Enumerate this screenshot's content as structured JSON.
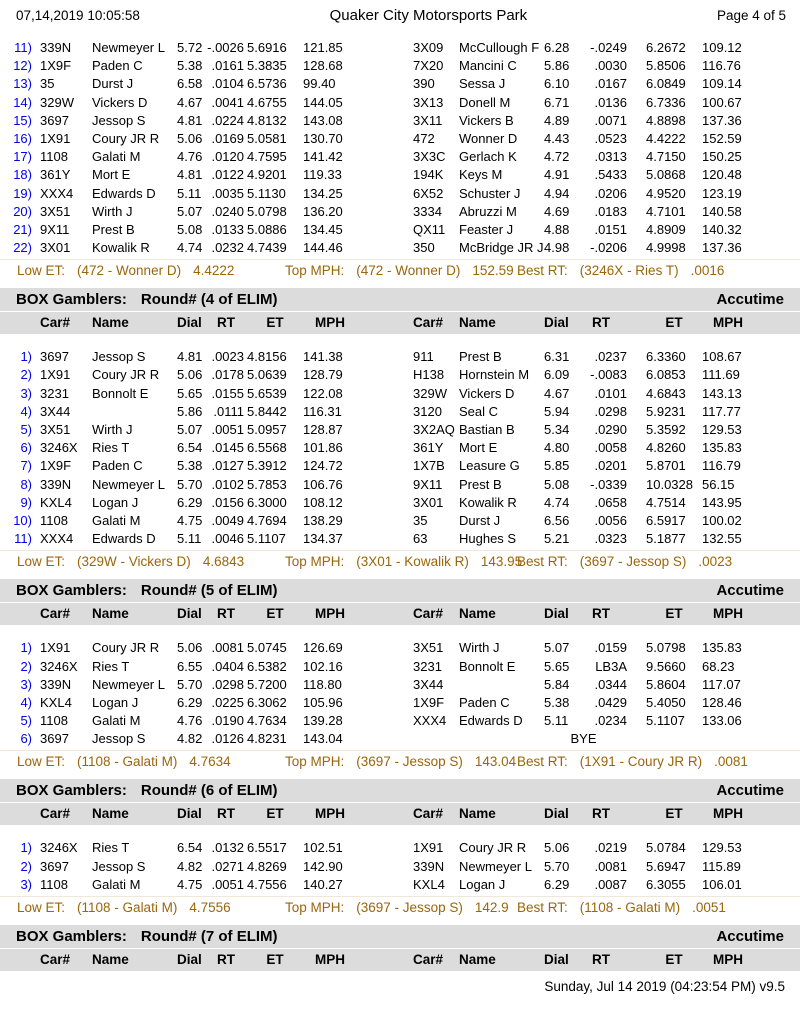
{
  "page": {
    "datetime": "07,14,2019 10:05:58",
    "title": "Quaker City Motorsports Park",
    "page_label": "Page 4 of 5",
    "footer": "Sunday, Jul 14 2019 (04:23:54 PM) v9.5"
  },
  "colors": {
    "row_number_blue": "#0000EE",
    "stats_brown": "#9A660A",
    "section_header_bg": "#DCDCDC"
  },
  "columns": [
    "Car#",
    "Name",
    "Dial",
    "RT",
    "ET",
    "MPH"
  ],
  "top_table": {
    "rows": [
      {
        "num": "11)",
        "left": {
          "car": "339N",
          "name": "Newmeyer L",
          "dial": "5.72",
          "rt": "-.0026",
          "et": "5.6916",
          "mph": "121.85"
        },
        "right": {
          "car": "3X09",
          "name": "McCullough F",
          "dial": "6.28",
          "rt": "-.0249",
          "et": "6.2672",
          "mph": "109.12"
        }
      },
      {
        "num": "12)",
        "left": {
          "car": "1X9F",
          "name": "Paden C",
          "dial": "5.38",
          "rt": ".0161",
          "et": "5.3835",
          "mph": "128.68"
        },
        "right": {
          "car": "7X20",
          "name": "Mancini C",
          "dial": "5.86",
          "rt": ".0030",
          "et": "5.8506",
          "mph": "116.76"
        }
      },
      {
        "num": "13)",
        "left": {
          "car": "35",
          "name": "Durst J",
          "dial": "6.58",
          "rt": ".0104",
          "et": "6.5736",
          "mph": "99.40"
        },
        "right": {
          "car": "390",
          "name": "Sessa J",
          "dial": "6.10",
          "rt": ".0167",
          "et": "6.0849",
          "mph": "109.14"
        }
      },
      {
        "num": "14)",
        "left": {
          "car": "329W",
          "name": "Vickers D",
          "dial": "4.67",
          "rt": ".0041",
          "et": "4.6755",
          "mph": "144.05"
        },
        "right": {
          "car": "3X13",
          "name": "Donell M",
          "dial": "6.71",
          "rt": ".0136",
          "et": "6.7336",
          "mph": "100.67"
        }
      },
      {
        "num": "15)",
        "left": {
          "car": "3697",
          "name": "Jessop S",
          "dial": "4.81",
          "rt": ".0224",
          "et": "4.8132",
          "mph": "143.08"
        },
        "right": {
          "car": "3X11",
          "name": "Vickers B",
          "dial": "4.89",
          "rt": ".0071",
          "et": "4.8898",
          "mph": "137.36"
        }
      },
      {
        "num": "16)",
        "left": {
          "car": "1X91",
          "name": "Coury JR R",
          "dial": "5.06",
          "rt": ".0169",
          "et": "5.0581",
          "mph": "130.70"
        },
        "right": {
          "car": "472",
          "name": "Wonner D",
          "dial": "4.43",
          "rt": ".0523",
          "et": "4.4222",
          "mph": "152.59"
        }
      },
      {
        "num": "17)",
        "left": {
          "car": "1108",
          "name": "Galati M",
          "dial": "4.76",
          "rt": ".0120",
          "et": "4.7595",
          "mph": "141.42"
        },
        "right": {
          "car": "3X3C",
          "name": "Gerlach K",
          "dial": "4.72",
          "rt": ".0313",
          "et": "4.7150",
          "mph": "150.25"
        }
      },
      {
        "num": "18)",
        "left": {
          "car": "361Y",
          "name": "Mort E",
          "dial": "4.81",
          "rt": ".0122",
          "et": "4.9201",
          "mph": "119.33"
        },
        "right": {
          "car": "194K",
          "name": "Keys M",
          "dial": "4.91",
          "rt": ".5433",
          "et": "5.0868",
          "mph": "120.48"
        }
      },
      {
        "num": "19)",
        "left": {
          "car": "XXX4",
          "name": "Edwards D",
          "dial": "5.11",
          "rt": ".0035",
          "et": "5.1130",
          "mph": "134.25"
        },
        "right": {
          "car": "6X52",
          "name": "Schuster J",
          "dial": "4.94",
          "rt": ".0206",
          "et": "4.9520",
          "mph": "123.19"
        }
      },
      {
        "num": "20)",
        "left": {
          "car": "3X51",
          "name": "Wirth J",
          "dial": "5.07",
          "rt": ".0240",
          "et": "5.0798",
          "mph": "136.20"
        },
        "right": {
          "car": "3334",
          "name": "Abruzzi M",
          "dial": "4.69",
          "rt": ".0183",
          "et": "4.7101",
          "mph": "140.58"
        }
      },
      {
        "num": "21)",
        "left": {
          "car": "9X11",
          "name": "Prest B",
          "dial": "5.08",
          "rt": ".0133",
          "et": "5.0886",
          "mph": "134.45"
        },
        "right": {
          "car": "QX11",
          "name": "Feaster J",
          "dial": "4.88",
          "rt": ".0151",
          "et": "4.8909",
          "mph": "140.32"
        }
      },
      {
        "num": "22)",
        "left": {
          "car": "3X01",
          "name": "Kowalik R",
          "dial": "4.74",
          "rt": ".0232",
          "et": "4.7439",
          "mph": "144.46"
        },
        "right": {
          "car": "350",
          "name": "McBridge JR J",
          "dial": "4.98",
          "rt": "-.0206",
          "et": "4.9998",
          "mph": "137.36"
        }
      }
    ],
    "stats": [
      {
        "key": "low-et",
        "label": "Low ET:",
        "entry": "(472 - Wonner D)",
        "value": "4.4222"
      },
      {
        "key": "top-mph",
        "label": "Top MPH:",
        "entry": "(472 - Wonner D)",
        "value": "152.59"
      },
      {
        "key": "best-rt",
        "label": "Best RT:",
        "entry": "(3246X - Ries T)",
        "value": ".0016"
      }
    ]
  },
  "sections": [
    {
      "group": "BOX Gamblers:",
      "round": "Round# (4 of ELIM)",
      "right_label": "Accutime",
      "rows": [
        {
          "num": "1)",
          "left": {
            "car": "3697",
            "name": "Jessop S",
            "dial": "4.81",
            "rt": ".0023",
            "et": "4.8156",
            "mph": "141.38"
          },
          "right": {
            "car": "911",
            "name": "Prest B",
            "dial": "6.31",
            "rt": ".0237",
            "et": "6.3360",
            "mph": "108.67"
          }
        },
        {
          "num": "2)",
          "left": {
            "car": "1X91",
            "name": "Coury JR R",
            "dial": "5.06",
            "rt": ".0178",
            "et": "5.0639",
            "mph": "128.79"
          },
          "right": {
            "car": "H138",
            "name": "Hornstein M",
            "dial": "6.09",
            "rt": "-.0083",
            "et": "6.0853",
            "mph": "111.69"
          }
        },
        {
          "num": "3)",
          "left": {
            "car": "3231",
            "name": "Bonnolt E",
            "dial": "5.65",
            "rt": ".0155",
            "et": "5.6539",
            "mph": "122.08"
          },
          "right": {
            "car": "329W",
            "name": "Vickers D",
            "dial": "4.67",
            "rt": ".0101",
            "et": "4.6843",
            "mph": "143.13"
          }
        },
        {
          "num": "4)",
          "left": {
            "car": "3X44",
            "name": "",
            "dial": "5.86",
            "rt": ".0111",
            "et": "5.8442",
            "mph": "116.31"
          },
          "right": {
            "car": "3120",
            "name": "Seal C",
            "dial": "5.94",
            "rt": ".0298",
            "et": "5.9231",
            "mph": "117.77"
          }
        },
        {
          "num": "5)",
          "left": {
            "car": "3X51",
            "name": "Wirth J",
            "dial": "5.07",
            "rt": ".0051",
            "et": "5.0957",
            "mph": "128.87"
          },
          "right": {
            "car": "3X2AQ",
            "name": "Bastian B",
            "dial": "5.34",
            "rt": ".0290",
            "et": "5.3592",
            "mph": "129.53"
          }
        },
        {
          "num": "6)",
          "left": {
            "car": "3246X",
            "name": "Ries T",
            "dial": "6.54",
            "rt": ".0145",
            "et": "6.5568",
            "mph": "101.86"
          },
          "right": {
            "car": "361Y",
            "name": "Mort E",
            "dial": "4.80",
            "rt": ".0058",
            "et": "4.8260",
            "mph": "135.83"
          }
        },
        {
          "num": "7)",
          "left": {
            "car": "1X9F",
            "name": "Paden C",
            "dial": "5.38",
            "rt": ".0127",
            "et": "5.3912",
            "mph": "124.72"
          },
          "right": {
            "car": "1X7B",
            "name": "Leasure G",
            "dial": "5.85",
            "rt": ".0201",
            "et": "5.8701",
            "mph": "116.79"
          }
        },
        {
          "num": "8)",
          "left": {
            "car": "339N",
            "name": "Newmeyer L",
            "dial": "5.70",
            "rt": ".0102",
            "et": "5.7853",
            "mph": "106.76"
          },
          "right": {
            "car": "9X11",
            "name": "Prest B",
            "dial": "5.08",
            "rt": "-.0339",
            "et": "10.0328",
            "mph": "56.15"
          }
        },
        {
          "num": "9)",
          "left": {
            "car": "KXL4",
            "name": "Logan J",
            "dial": "6.29",
            "rt": ".0156",
            "et": "6.3000",
            "mph": "108.12"
          },
          "right": {
            "car": "3X01",
            "name": "Kowalik R",
            "dial": "4.74",
            "rt": ".0658",
            "et": "4.7514",
            "mph": "143.95"
          }
        },
        {
          "num": "10)",
          "left": {
            "car": "1108",
            "name": "Galati M",
            "dial": "4.75",
            "rt": ".0049",
            "et": "4.7694",
            "mph": "138.29"
          },
          "right": {
            "car": "35",
            "name": "Durst J",
            "dial": "6.56",
            "rt": ".0056",
            "et": "6.5917",
            "mph": "100.02"
          }
        },
        {
          "num": "11)",
          "left": {
            "car": "XXX4",
            "name": "Edwards D",
            "dial": "5.11",
            "rt": ".0046",
            "et": "5.1107",
            "mph": "134.37"
          },
          "right": {
            "car": "63",
            "name": "Hughes S",
            "dial": "5.21",
            "rt": ".0323",
            "et": "5.1877",
            "mph": "132.55"
          }
        }
      ],
      "stats": [
        {
          "key": "low-et",
          "label": "Low ET:",
          "entry": "(329W - Vickers D)",
          "value": "4.6843"
        },
        {
          "key": "top-mph",
          "label": "Top MPH:",
          "entry": "(3X01 - Kowalik R)",
          "value": "143.95"
        },
        {
          "key": "best-rt",
          "label": "Best RT:",
          "entry": "(3697 - Jessop S)",
          "value": ".0023"
        }
      ]
    },
    {
      "group": "BOX Gamblers:",
      "round": "Round# (5 of ELIM)",
      "right_label": "Accutime",
      "rows": [
        {
          "num": "1)",
          "left": {
            "car": "1X91",
            "name": "Coury JR R",
            "dial": "5.06",
            "rt": ".0081",
            "et": "5.0745",
            "mph": "126.69"
          },
          "right": {
            "car": "3X51",
            "name": "Wirth J",
            "dial": "5.07",
            "rt": ".0159",
            "et": "5.0798",
            "mph": "135.83"
          }
        },
        {
          "num": "2)",
          "left": {
            "car": "3246X",
            "name": "Ries T",
            "dial": "6.55",
            "rt": ".0404",
            "et": "6.5382",
            "mph": "102.16"
          },
          "right": {
            "car": "3231",
            "name": "Bonnolt E",
            "dial": "5.65",
            "rt": "LB3A",
            "et": "9.5660",
            "mph": "68.23"
          }
        },
        {
          "num": "3)",
          "left": {
            "car": "339N",
            "name": "Newmeyer L",
            "dial": "5.70",
            "rt": ".0298",
            "et": "5.7200",
            "mph": "118.80"
          },
          "right": {
            "car": "3X44",
            "name": "",
            "dial": "5.84",
            "rt": ".0344",
            "et": "5.8604",
            "mph": "117.07"
          }
        },
        {
          "num": "4)",
          "left": {
            "car": "KXL4",
            "name": "Logan J",
            "dial": "6.29",
            "rt": ".0225",
            "et": "6.3062",
            "mph": "105.96"
          },
          "right": {
            "car": "1X9F",
            "name": "Paden C",
            "dial": "5.38",
            "rt": ".0429",
            "et": "5.4050",
            "mph": "128.46"
          }
        },
        {
          "num": "5)",
          "left": {
            "car": "1108",
            "name": "Galati M",
            "dial": "4.76",
            "rt": ".0190",
            "et": "4.7634",
            "mph": "139.28"
          },
          "right": {
            "car": "XXX4",
            "name": "Edwards D",
            "dial": "5.11",
            "rt": ".0234",
            "et": "5.1107",
            "mph": "133.06"
          }
        },
        {
          "num": "6)",
          "left": {
            "car": "3697",
            "name": "Jessop S",
            "dial": "4.82",
            "rt": ".0126",
            "et": "4.8231",
            "mph": "143.04"
          },
          "right": {
            "bye": "BYE"
          }
        }
      ],
      "stats": [
        {
          "key": "low-et",
          "label": "Low ET:",
          "entry": "(1108 - Galati M)",
          "value": "4.7634"
        },
        {
          "key": "top-mph",
          "label": "Top MPH:",
          "entry": "(3697 - Jessop S)",
          "value": "143.04"
        },
        {
          "key": "best-rt",
          "label": "Best RT:",
          "entry": "(1X91 - Coury JR R)",
          "value": ".0081"
        }
      ]
    },
    {
      "group": "BOX Gamblers:",
      "round": "Round# (6 of ELIM)",
      "right_label": "Accutime",
      "rows": [
        {
          "num": "1)",
          "left": {
            "car": "3246X",
            "name": "Ries T",
            "dial": "6.54",
            "rt": ".0132",
            "et": "6.5517",
            "mph": "102.51"
          },
          "right": {
            "car": "1X91",
            "name": "Coury JR R",
            "dial": "5.06",
            "rt": ".0219",
            "et": "5.0784",
            "mph": "129.53"
          }
        },
        {
          "num": "2)",
          "left": {
            "car": "3697",
            "name": "Jessop S",
            "dial": "4.82",
            "rt": ".0271",
            "et": "4.8269",
            "mph": "142.90"
          },
          "right": {
            "car": "339N",
            "name": "Newmeyer L",
            "dial": "5.70",
            "rt": ".0081",
            "et": "5.6947",
            "mph": "115.89"
          }
        },
        {
          "num": "3)",
          "left": {
            "car": "1108",
            "name": "Galati M",
            "dial": "4.75",
            "rt": ".0051",
            "et": "4.7556",
            "mph": "140.27"
          },
          "right": {
            "car": "KXL4",
            "name": "Logan J",
            "dial": "6.29",
            "rt": ".0087",
            "et": "6.3055",
            "mph": "106.01"
          }
        }
      ],
      "stats": [
        {
          "key": "low-et",
          "label": "Low ET:",
          "entry": "(1108 - Galati M)",
          "value": "4.7556"
        },
        {
          "key": "top-mph",
          "label": "Top MPH:",
          "entry": "(3697 - Jessop S)",
          "value": "142.9"
        },
        {
          "key": "best-rt",
          "label": "Best RT:",
          "entry": "(1108 - Galati M)",
          "value": ".0051"
        }
      ]
    },
    {
      "group": "BOX Gamblers:",
      "round": "Round# (7 of ELIM)",
      "right_label": "Accutime",
      "rows": [],
      "stats": null
    }
  ]
}
